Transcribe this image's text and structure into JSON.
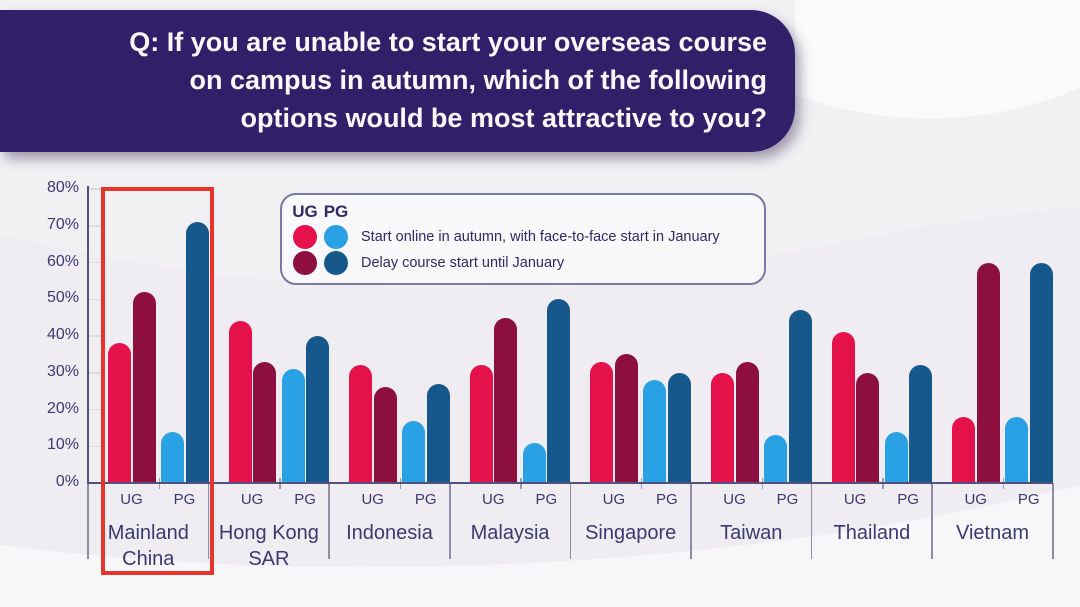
{
  "header": {
    "title_lines": [
      "Q: If you are unable to start your overseas course",
      "on campus in autumn, which of the following",
      "options would be most attractive to you?"
    ],
    "bg_color": "#2F2069"
  },
  "legend": {
    "col_headers": [
      "UG",
      "PG"
    ],
    "rows": [
      {
        "label": "Start online in autumn, with face-to-face start in January"
      },
      {
        "label": "Delay course start until January"
      }
    ]
  },
  "chart_data": {
    "type": "bar",
    "title": "Q: If you are unable to start your overseas course on campus in autumn, which of the following options would be most attractive to you?",
    "categories": [
      "Mainland China",
      "Hong Kong SAR",
      "Indonesia",
      "Malaysia",
      "Singapore",
      "Taiwan",
      "Thailand",
      "Vietnam"
    ],
    "group_labels": [
      "UG",
      "PG"
    ],
    "yticks": [
      "0%",
      "10%",
      "20%",
      "30%",
      "40%",
      "50%",
      "60%",
      "70%",
      "80%"
    ],
    "ylim": [
      0,
      80
    ],
    "grid": "short tick marks on y-axis only",
    "legend_position": "top-center",
    "series": [
      {
        "key": "ug-online",
        "name": "UG - Start online in autumn, with face-to-face start in January",
        "color": "#E4114B",
        "values": [
          38,
          44,
          32,
          32,
          33,
          30,
          41,
          18
        ]
      },
      {
        "key": "ug-delay",
        "name": "UG - Delay course start until January",
        "color": "#8D0F3F",
        "values": [
          52,
          33,
          26,
          45,
          35,
          33,
          30,
          60
        ]
      },
      {
        "key": "pg-online",
        "name": "PG - Start online in autumn, with face-to-face start in January",
        "color": "#2AA0E5",
        "values": [
          14,
          31,
          17,
          11,
          28,
          13,
          14,
          18
        ]
      },
      {
        "key": "pg-delay",
        "name": "PG - Delay course start until January",
        "color": "#17588C",
        "values": [
          71,
          40,
          27,
          50,
          30,
          47,
          32,
          60
        ]
      }
    ],
    "highlight": {
      "category": "Mainland China",
      "color": "#E6352B"
    }
  },
  "colors": {
    "background": "#F1F0F3",
    "header_bg": "#2F2069",
    "header_text": "#FBF8FB",
    "axis_text": "#3C3970",
    "axis_line": "#55517E",
    "highlight_box": "#E6352B"
  }
}
